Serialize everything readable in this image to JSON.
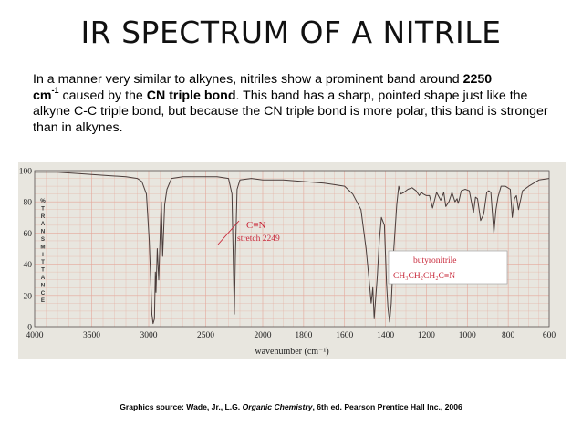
{
  "slide": {
    "title": "IR SPECTRUM OF A NITRILE",
    "intro": {
      "p1": "In a manner very similar to alkynes, nitriles show a prominent band around ",
      "b1": "2250",
      "b2": "cm",
      "sup": "-1",
      "p2": " caused by the ",
      "b3": "CN triple bond",
      "p3": ". This band has a sharp, pointed shape just like the alkyne C-C triple bond, but because the CN triple bond is more polar, this band is stronger than in alkynes."
    },
    "credit": {
      "prefix": "Graphics source: Wade, Jr., L.G. ",
      "book": "Organic Chemistry",
      "suffix": ", 6th ed. Pearson Prentice Hall Inc., 2006"
    }
  },
  "colors": {
    "plot_background": "#e8e6df",
    "grid": "#e4a79a",
    "trace": "#4a3c3a",
    "annotation": "#c8283a",
    "compound_box": "#ffffff"
  },
  "chart_data": {
    "type": "line",
    "xlabel": "wavenumber (cm⁻¹)",
    "ylabel": "%TRANSMITTANCE",
    "x_ticks": [
      4000,
      3500,
      3000,
      2500,
      2000,
      1800,
      1600,
      1400,
      1200,
      1000,
      800,
      600
    ],
    "y_ticks": [
      0,
      20,
      40,
      60,
      80,
      100
    ],
    "xlim": [
      4000,
      600
    ],
    "ylim": [
      0,
      100
    ],
    "grid": true,
    "annotations": {
      "cn_label": "C≡N",
      "cn_stretch": "stretch 2249",
      "compound_name": "butyronitrile",
      "formula_part1": "CH₃CH₂CH₂C",
      "formula_triple": "≡",
      "formula_part2": "N"
    },
    "series": [
      {
        "x": [
          4000,
          3800,
          3600,
          3400,
          3200,
          3100,
          3060,
          3020,
          2995,
          2980,
          2972,
          2962,
          2950,
          2942,
          2936,
          2925,
          2912,
          2890,
          2878,
          2870,
          2860,
          2840,
          2800,
          2700,
          2500,
          2400,
          2300,
          2270,
          2258,
          2249,
          2240,
          2225,
          2200,
          2100,
          2000,
          1900,
          1800,
          1700,
          1650,
          1600,
          1560,
          1520,
          1495,
          1480,
          1470,
          1462,
          1455,
          1448,
          1440,
          1430,
          1420,
          1405,
          1395,
          1388,
          1380,
          1372,
          1360,
          1345,
          1335,
          1325,
          1310,
          1290,
          1270,
          1250,
          1235,
          1225,
          1215,
          1200,
          1185,
          1170,
          1150,
          1130,
          1115,
          1105,
          1090,
          1075,
          1060,
          1050,
          1045,
          1040,
          1030,
          1010,
          990,
          970,
          960,
          950,
          935,
          920,
          905,
          895,
          885,
          870,
          860,
          850,
          835,
          815,
          790,
          780,
          770,
          760,
          750,
          730,
          700,
          650,
          600
        ],
        "y": [
          99,
          99,
          98,
          97,
          96,
          95,
          93,
          85,
          55,
          25,
          8,
          2,
          5,
          35,
          22,
          50,
          30,
          80,
          45,
          60,
          78,
          88,
          95,
          96,
          96,
          96,
          95,
          85,
          40,
          8,
          45,
          88,
          94,
          95,
          94,
          94,
          93,
          92,
          91,
          90,
          85,
          75,
          50,
          30,
          15,
          25,
          5,
          18,
          32,
          55,
          70,
          65,
          28,
          12,
          3,
          15,
          48,
          78,
          90,
          85,
          86,
          88,
          89,
          87,
          84,
          86,
          85,
          84,
          84,
          76,
          86,
          81,
          86,
          77,
          80,
          86,
          80,
          82,
          79,
          81,
          87,
          88,
          87,
          73,
          83,
          82,
          68,
          72,
          86,
          87,
          86,
          60,
          75,
          83,
          90,
          90,
          88,
          70,
          82,
          84,
          75,
          87,
          90,
          94,
          95
        ]
      }
    ]
  }
}
